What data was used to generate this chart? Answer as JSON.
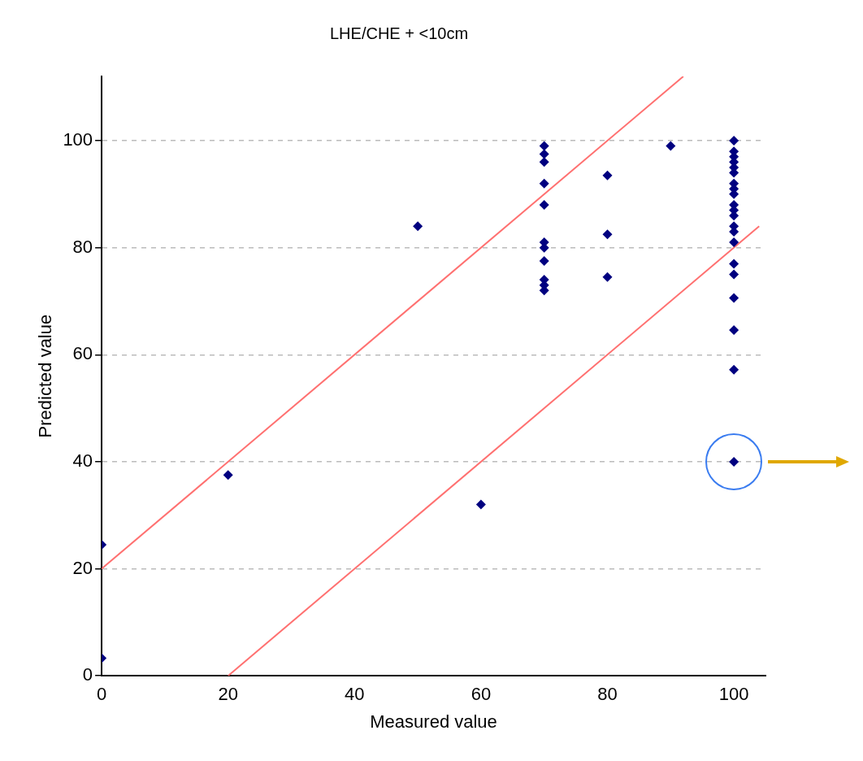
{
  "chart_data": {
    "type": "scatter",
    "title": "LHE/CHE + <10cm",
    "xlabel": "Measured value",
    "ylabel": "Predicted value",
    "xlim": [
      0,
      105
    ],
    "ylim": [
      0,
      112
    ],
    "xticks": [
      0,
      20,
      40,
      60,
      80,
      100
    ],
    "yticks": [
      0,
      20,
      40,
      60,
      80,
      100
    ],
    "grid": "y",
    "legend": false,
    "marker": "diamond",
    "x": [
      0,
      0,
      20,
      50,
      60,
      70,
      70,
      70,
      70,
      70,
      70,
      70,
      70,
      70,
      70,
      70,
      80,
      80,
      80,
      90,
      100,
      100,
      100,
      100,
      100,
      100,
      100,
      100,
      100,
      100,
      100,
      100,
      100,
      100,
      100,
      100,
      100,
      100,
      100,
      100,
      100
    ],
    "series": [
      {
        "color": "#000080",
        "values": [
          24.5,
          3.3,
          37.5,
          84,
          32,
          99,
          97.5,
          96,
          92,
          88,
          81,
          80,
          77.5,
          74,
          73,
          72,
          93.5,
          82.5,
          74.5,
          99,
          100,
          98,
          97,
          96,
          95,
          94,
          92,
          91,
          90,
          88,
          87,
          86,
          84,
          83,
          81,
          77,
          75,
          70.6,
          64.6,
          57.2,
          40
        ]
      },
      {
        "type": "line",
        "color": "#ff7070",
        "marker": "none",
        "x": [
          0,
          92
        ],
        "values": [
          20,
          112
        ]
      },
      {
        "type": "line",
        "color": "#ff7070",
        "marker": "none",
        "x": [
          20,
          104
        ],
        "values": [
          0,
          84
        ]
      }
    ]
  }
}
